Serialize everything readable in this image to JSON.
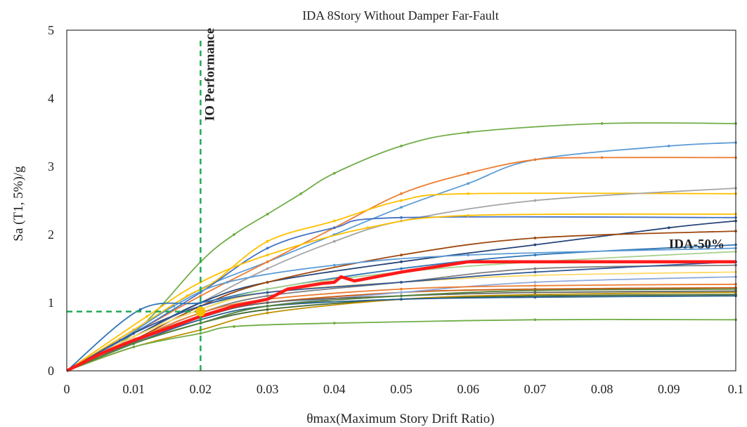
{
  "chart_data": {
    "type": "line",
    "title": "IDA 8Story Without Damper Far-Fault",
    "xlabel": "θmax(Maximum Story Drift Ratio)",
    "ylabel": "Sa (T1, 5%)/g",
    "xlim": [
      0,
      0.1
    ],
    "ylim": [
      0,
      5
    ],
    "x_ticks": [
      "0",
      "0.01",
      "0.02",
      "0.03",
      "0.04",
      "0.05",
      "0.06",
      "0.07",
      "0.08",
      "0.09",
      "0.1"
    ],
    "y_ticks": [
      "0",
      "1",
      "2",
      "3",
      "4",
      "5"
    ],
    "grid": false,
    "annotations": [
      {
        "text": "IO Performance",
        "color": "#7030a0",
        "at_x": 0.022,
        "at_y": 4.35,
        "rotation": -90
      },
      {
        "text": "IDA-50%",
        "color": "#111111",
        "at_x": 0.09,
        "at_y": 1.8
      }
    ],
    "io_limit": {
      "x": 0.02,
      "y": 0.87,
      "color": "#22aa55",
      "style": "dashed"
    },
    "median_series": {
      "name": "IDA-50%",
      "color": "#ff1a1a",
      "points": [
        [
          0,
          0
        ],
        [
          0.005,
          0.25
        ],
        [
          0.01,
          0.45
        ],
        [
          0.015,
          0.62
        ],
        [
          0.02,
          0.8
        ],
        [
          0.025,
          0.95
        ],
        [
          0.03,
          1.05
        ],
        [
          0.033,
          1.2
        ],
        [
          0.038,
          1.28
        ],
        [
          0.04,
          1.3
        ],
        [
          0.041,
          1.38
        ],
        [
          0.043,
          1.32
        ],
        [
          0.05,
          1.45
        ],
        [
          0.06,
          1.6
        ],
        [
          0.08,
          1.6
        ],
        [
          0.1,
          1.6
        ]
      ]
    },
    "series": [
      {
        "color": "#70ad47",
        "points": [
          [
            0,
            0
          ],
          [
            0.01,
            0.55
          ],
          [
            0.02,
            1.6
          ],
          [
            0.025,
            2.0
          ],
          [
            0.03,
            2.3
          ],
          [
            0.035,
            2.6
          ],
          [
            0.04,
            2.9
          ],
          [
            0.05,
            3.3
          ],
          [
            0.06,
            3.5
          ],
          [
            0.08,
            3.63
          ],
          [
            0.1,
            3.63
          ]
        ]
      },
      {
        "color": "#5b9bd5",
        "points": [
          [
            0,
            0
          ],
          [
            0.01,
            0.6
          ],
          [
            0.02,
            1.2
          ],
          [
            0.03,
            1.6
          ],
          [
            0.04,
            2.0
          ],
          [
            0.05,
            2.4
          ],
          [
            0.06,
            2.75
          ],
          [
            0.07,
            3.1
          ],
          [
            0.09,
            3.3
          ],
          [
            0.1,
            3.35
          ]
        ]
      },
      {
        "color": "#ed7d31",
        "points": [
          [
            0,
            0
          ],
          [
            0.01,
            0.55
          ],
          [
            0.02,
            1.1
          ],
          [
            0.03,
            1.6
          ],
          [
            0.04,
            2.1
          ],
          [
            0.05,
            2.6
          ],
          [
            0.06,
            2.9
          ],
          [
            0.07,
            3.1
          ],
          [
            0.08,
            3.13
          ],
          [
            0.1,
            3.13
          ]
        ]
      },
      {
        "color": "#ffc000",
        "points": [
          [
            0,
            0
          ],
          [
            0.01,
            0.6
          ],
          [
            0.018,
            1.1
          ],
          [
            0.022,
            1.3
          ],
          [
            0.03,
            1.9
          ],
          [
            0.04,
            2.2
          ],
          [
            0.05,
            2.5
          ],
          [
            0.06,
            2.6
          ],
          [
            0.1,
            2.6
          ]
        ]
      },
      {
        "color": "#a5a5a5",
        "points": [
          [
            0,
            0
          ],
          [
            0.01,
            0.5
          ],
          [
            0.02,
            1.0
          ],
          [
            0.03,
            1.5
          ],
          [
            0.04,
            1.9
          ],
          [
            0.05,
            2.2
          ],
          [
            0.07,
            2.5
          ],
          [
            0.1,
            2.68
          ]
        ]
      },
      {
        "color": "#4472c4",
        "points": [
          [
            0,
            0
          ],
          [
            0.01,
            0.55
          ],
          [
            0.02,
            1.15
          ],
          [
            0.03,
            1.8
          ],
          [
            0.04,
            2.1
          ],
          [
            0.05,
            2.25
          ],
          [
            0.1,
            2.25
          ]
        ]
      },
      {
        "color": "#ffc000",
        "points": [
          [
            0,
            0
          ],
          [
            0.012,
            0.8
          ],
          [
            0.02,
            1.3
          ],
          [
            0.03,
            1.7
          ],
          [
            0.045,
            2.1
          ],
          [
            0.06,
            2.28
          ],
          [
            0.1,
            2.3
          ]
        ]
      },
      {
        "color": "#264478",
        "points": [
          [
            0,
            0
          ],
          [
            0.01,
            0.5
          ],
          [
            0.02,
            1.0
          ],
          [
            0.03,
            1.3
          ],
          [
            0.05,
            1.6
          ],
          [
            0.07,
            1.85
          ],
          [
            0.09,
            2.1
          ],
          [
            0.1,
            2.2
          ]
        ]
      },
      {
        "color": "#9e480e",
        "points": [
          [
            0,
            0
          ],
          [
            0.01,
            0.45
          ],
          [
            0.02,
            0.95
          ],
          [
            0.03,
            1.3
          ],
          [
            0.05,
            1.7
          ],
          [
            0.07,
            1.95
          ],
          [
            0.1,
            2.05
          ]
        ]
      },
      {
        "color": "#2e75b6",
        "points": [
          [
            0,
            0
          ],
          [
            0.011,
            0.9
          ],
          [
            0.02,
            1.0
          ],
          [
            0.03,
            1.2
          ],
          [
            0.05,
            1.5
          ],
          [
            0.07,
            1.7
          ],
          [
            0.1,
            1.85
          ]
        ]
      },
      {
        "color": "#a9d18e",
        "points": [
          [
            0,
            0
          ],
          [
            0.01,
            0.5
          ],
          [
            0.02,
            0.9
          ],
          [
            0.03,
            1.2
          ],
          [
            0.05,
            1.45
          ],
          [
            0.07,
            1.6
          ],
          [
            0.1,
            1.75
          ]
        ]
      },
      {
        "color": "#7f7f7f",
        "points": [
          [
            0,
            0
          ],
          [
            0.01,
            0.45
          ],
          [
            0.02,
            0.85
          ],
          [
            0.03,
            1.1
          ],
          [
            0.05,
            1.3
          ],
          [
            0.07,
            1.5
          ],
          [
            0.1,
            1.55
          ]
        ]
      },
      {
        "color": "#43682b",
        "points": [
          [
            0,
            0
          ],
          [
            0.01,
            0.4
          ],
          [
            0.02,
            0.7
          ],
          [
            0.03,
            0.9
          ],
          [
            0.05,
            1.05
          ],
          [
            0.07,
            1.1
          ],
          [
            0.1,
            1.12
          ]
        ]
      },
      {
        "color": "#c55a11",
        "points": [
          [
            0,
            0
          ],
          [
            0.01,
            0.45
          ],
          [
            0.02,
            0.8
          ],
          [
            0.03,
            1.0
          ],
          [
            0.05,
            1.15
          ],
          [
            0.07,
            1.2
          ],
          [
            0.1,
            1.22
          ]
        ]
      },
      {
        "color": "#8faadc",
        "points": [
          [
            0,
            0
          ],
          [
            0.01,
            0.4
          ],
          [
            0.02,
            0.7
          ],
          [
            0.03,
            0.95
          ],
          [
            0.05,
            1.15
          ],
          [
            0.07,
            1.3
          ],
          [
            0.1,
            1.38
          ]
        ]
      },
      {
        "color": "#bf9000",
        "points": [
          [
            0,
            0
          ],
          [
            0.01,
            0.35
          ],
          [
            0.02,
            0.6
          ],
          [
            0.03,
            0.85
          ],
          [
            0.05,
            1.05
          ],
          [
            0.07,
            1.12
          ],
          [
            0.1,
            1.15
          ]
        ]
      },
      {
        "color": "#70ad47",
        "points": [
          [
            0,
            0
          ],
          [
            0.01,
            0.35
          ],
          [
            0.02,
            0.55
          ],
          [
            0.025,
            0.65
          ],
          [
            0.04,
            0.7
          ],
          [
            0.07,
            0.75
          ],
          [
            0.1,
            0.75
          ]
        ]
      },
      {
        "color": "#255e91",
        "points": [
          [
            0,
            0
          ],
          [
            0.01,
            0.4
          ],
          [
            0.02,
            0.75
          ],
          [
            0.03,
            0.95
          ],
          [
            0.05,
            1.05
          ],
          [
            0.07,
            1.08
          ],
          [
            0.1,
            1.1
          ]
        ]
      },
      {
        "color": "#636363",
        "points": [
          [
            0,
            0
          ],
          [
            0.01,
            0.42
          ],
          [
            0.02,
            0.78
          ],
          [
            0.03,
            1.0
          ],
          [
            0.05,
            1.1
          ],
          [
            0.07,
            1.15
          ],
          [
            0.1,
            1.17
          ]
        ]
      },
      {
        "color": "#5b9bd5",
        "points": [
          [
            0,
            0
          ],
          [
            0.008,
            0.45
          ],
          [
            0.016,
            0.95
          ],
          [
            0.024,
            1.3
          ],
          [
            0.04,
            1.55
          ],
          [
            0.06,
            1.7
          ],
          [
            0.1,
            1.8
          ]
        ]
      },
      {
        "color": "#ed7d31",
        "points": [
          [
            0,
            0
          ],
          [
            0.01,
            0.45
          ],
          [
            0.02,
            0.85
          ],
          [
            0.03,
            1.05
          ],
          [
            0.05,
            1.2
          ],
          [
            0.07,
            1.25
          ],
          [
            0.1,
            1.27
          ]
        ]
      },
      {
        "color": "#ffd966",
        "points": [
          [
            0,
            0
          ],
          [
            0.01,
            0.5
          ],
          [
            0.02,
            0.9
          ],
          [
            0.03,
            1.15
          ],
          [
            0.05,
            1.3
          ],
          [
            0.07,
            1.4
          ],
          [
            0.1,
            1.45
          ]
        ]
      },
      {
        "color": "#2f5597",
        "points": [
          [
            0,
            0
          ],
          [
            0.01,
            0.55
          ],
          [
            0.02,
            0.95
          ],
          [
            0.03,
            1.15
          ],
          [
            0.05,
            1.3
          ],
          [
            0.07,
            1.45
          ],
          [
            0.1,
            1.6
          ]
        ]
      },
      {
        "color": "#548235",
        "points": [
          [
            0,
            0
          ],
          [
            0.01,
            0.4
          ],
          [
            0.02,
            0.7
          ],
          [
            0.03,
            0.95
          ],
          [
            0.05,
            1.1
          ],
          [
            0.07,
            1.18
          ],
          [
            0.1,
            1.2
          ]
        ]
      }
    ]
  }
}
